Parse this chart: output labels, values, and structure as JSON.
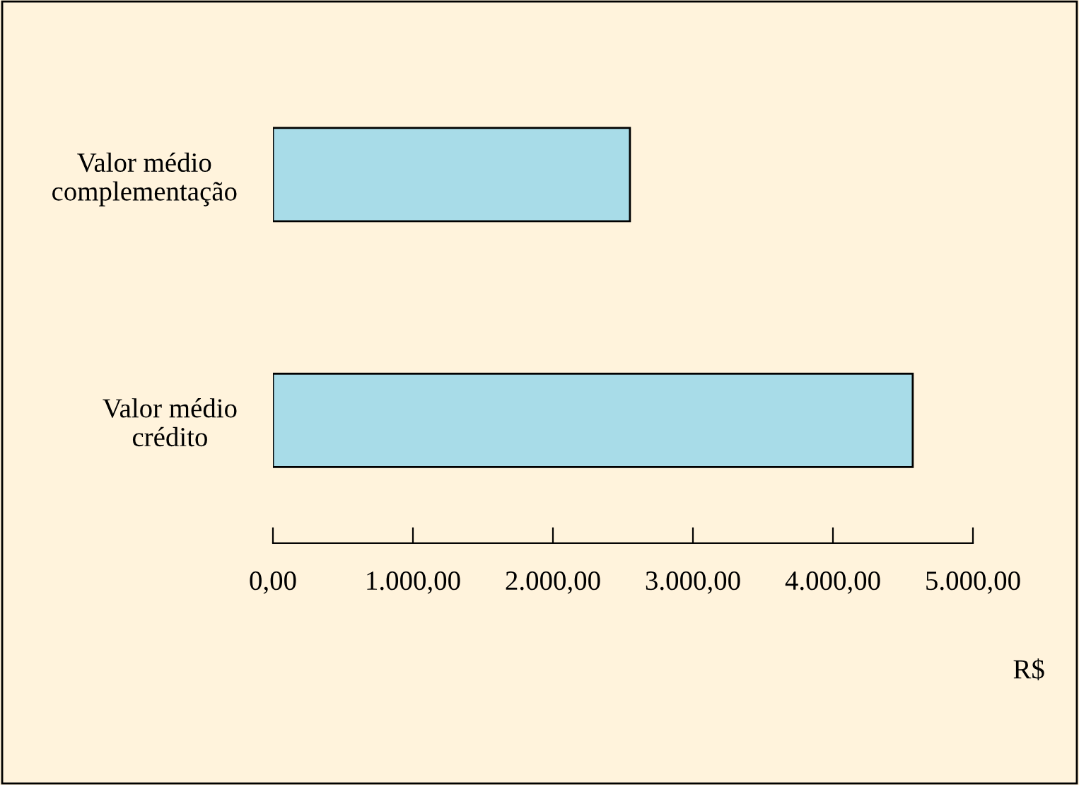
{
  "chart_data": {
    "type": "bar",
    "orientation": "horizontal",
    "categories": [
      "Valor médio\ncomplementação",
      "Valor médio\ncrédito"
    ],
    "values": [
      2550,
      4570
    ],
    "color": "#a8dce8",
    "xlabel": "R$",
    "xlim": [
      0,
      5000
    ],
    "xticks": [
      {
        "value": 0,
        "label": "0,00"
      },
      {
        "value": 1000,
        "label": "1.000,00"
      },
      {
        "value": 2000,
        "label": "2.000,00"
      },
      {
        "value": 3000,
        "label": "3.000,00"
      },
      {
        "value": 4000,
        "label": "4.000,00"
      },
      {
        "value": 5000,
        "label": "5.000,00"
      }
    ],
    "grid": false,
    "legend": false
  }
}
